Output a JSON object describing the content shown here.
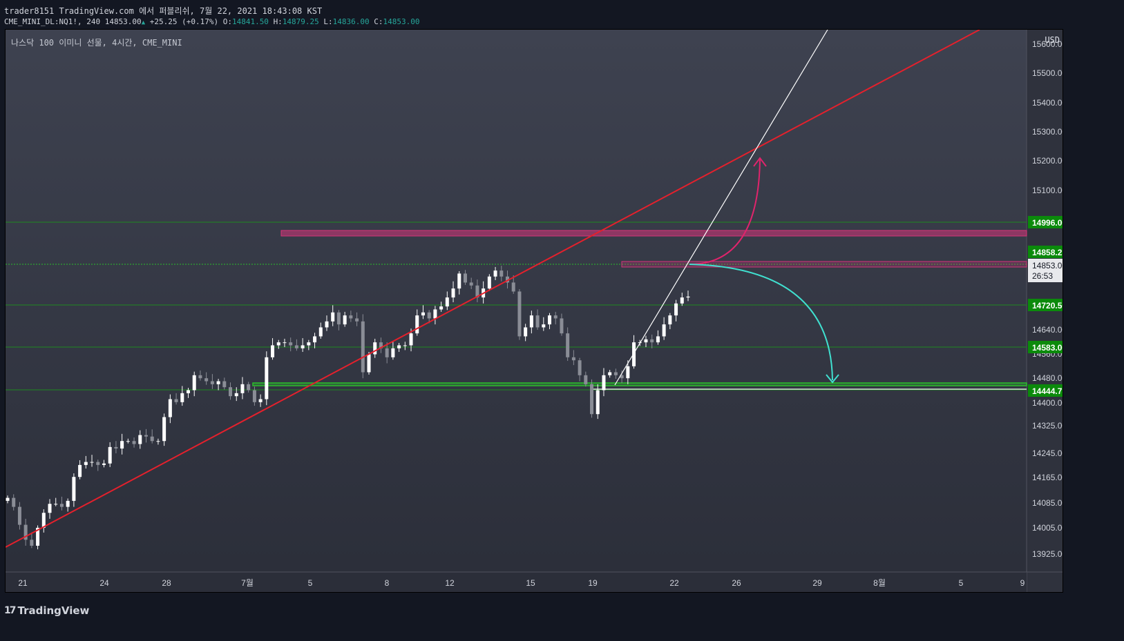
{
  "header": {
    "publish_line": "trader8151 TradingView.com 에서 퍼블리쉬, 7월 22, 2021 18:43:08 KST",
    "symbol_info": "CME_MINI_DL:NQ1!, 240 14853.00",
    "change": "+25.25 (+0.17%)",
    "o_label": "O:",
    "o_value": "14841.50",
    "h_label": "H:",
    "h_value": "14879.25",
    "l_label": "L:",
    "l_value": "14836.00",
    "c_label": "C:",
    "c_value": "14853.00"
  },
  "chart": {
    "title": "나스닥 100 이미니 선물, 4시간, CME_MINI",
    "currency": "USD",
    "price_ticks": [
      "15600.00",
      "15500.00",
      "15400.00",
      "15300.00",
      "15200.00",
      "15100.00",
      "14640.00",
      "14560.00",
      "14480.00",
      "14400.00",
      "14325.00",
      "14245.00",
      "14165.00",
      "14085.00",
      "14005.00",
      "13925.00"
    ],
    "price_labels": [
      {
        "text": "14996.00",
        "color": "#0b8a0b"
      },
      {
        "text": "14858.25",
        "color": "#0b8a0b"
      },
      {
        "text": "14720.50",
        "color": "#0b8a0b"
      },
      {
        "text": "14583.00",
        "color": "#0b8a0b"
      },
      {
        "text": "14444.75",
        "color": "#0b8a0b"
      }
    ],
    "current_price": "14853.00",
    "countdown": "26:53",
    "time_ticks": [
      "21",
      "24",
      "28",
      "7월",
      "5",
      "8",
      "12",
      "15",
      "19",
      "22",
      "26",
      "29",
      "8월",
      "5",
      "9"
    ]
  },
  "footer": {
    "brand": "TradingView"
  },
  "colors": {
    "trendline": "#e5202c",
    "support_green": "#2bbf2b",
    "resistance_zone": "#d6347a",
    "arrow_up": "#e0246c",
    "arrow_down": "#40e0d0",
    "candle_up": "#ffffff",
    "candle_down": "#8a8d96"
  },
  "chart_data": {
    "type": "candlestick",
    "timeframe": "240",
    "last": {
      "open": 14841.5,
      "high": 14879.25,
      "low": 14836.0,
      "close": 14853.0
    },
    "horizontal_levels": [
      14996.0,
      14858.25,
      14720.5,
      14583.0,
      14444.75
    ],
    "candles_close": [
      14180,
      14150,
      14090,
      14040,
      14020,
      14080,
      14130,
      14160,
      14160,
      14150,
      14170,
      14250,
      14290,
      14300,
      14300,
      14290,
      14295,
      14350,
      14345,
      14370,
      14370,
      14360,
      14390,
      14385,
      14370,
      14370,
      14450,
      14510,
      14500,
      14530,
      14540,
      14590,
      14580,
      14570,
      14560,
      14570,
      14550,
      14520,
      14530,
      14560,
      14540,
      14500,
      14510,
      14650,
      14690,
      14700,
      14700,
      14690,
      14680,
      14690,
      14700,
      14720,
      14750,
      14770,
      14800,
      14760,
      14790,
      14780,
      14770,
      14600,
      14660,
      14700,
      14680,
      14650,
      14680,
      14690,
      14690,
      14730,
      14790,
      14800,
      14780,
      14810,
      14820,
      14850,
      14880,
      14930,
      14900,
      14890,
      14850,
      14880,
      14920,
      14940,
      14920,
      14900,
      14870,
      14720,
      14750,
      14790,
      14750,
      14760,
      14790,
      14780,
      14730,
      14650,
      14640,
      14590,
      14560,
      14460,
      14540,
      14590,
      14600,
      14590,
      14580,
      14620,
      14700,
      14700,
      14710,
      14700,
      14720,
      14760,
      14790,
      14830,
      14850,
      14853
    ]
  }
}
